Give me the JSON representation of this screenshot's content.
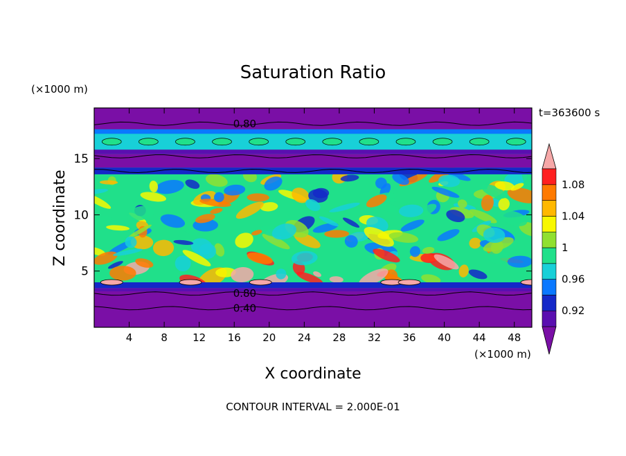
{
  "chart_data": {
    "type": "heatmap",
    "title": "Saturation Ratio",
    "xlabel": "X coordinate",
    "ylabel": "Z coordinate",
    "x_unit": "(×1000 m)",
    "y_unit": "(×1000 m)",
    "time_label": "t=363600 s",
    "footer": "CONTOUR INTERVAL = 2.000E-01",
    "xlim": [
      0,
      50
    ],
    "ylim": [
      0,
      19.5
    ],
    "x_ticks": [
      4,
      8,
      12,
      16,
      20,
      24,
      28,
      32,
      36,
      40,
      44,
      48
    ],
    "y_ticks": [
      5,
      10,
      15
    ],
    "colorbar": {
      "levels": [
        0.92,
        0.94,
        0.96,
        0.98,
        1.0,
        1.02,
        1.04,
        1.06,
        1.08
      ],
      "labels": [
        "0.92",
        "0.96",
        "1",
        "1.04",
        "1.08"
      ],
      "colors": [
        "#7a0fa6",
        "#5a0fb0",
        "#1428c8",
        "#0a78ff",
        "#18d0d8",
        "#20e08a",
        "#90e030",
        "#f8f800",
        "#ffb800",
        "#ff7a00",
        "#ff2020",
        "#f6a8a8"
      ]
    },
    "bands": [
      {
        "z0": 0,
        "z1": 3.2,
        "color": "#7a0fa6"
      },
      {
        "z0": 3.2,
        "z1": 3.5,
        "color": "#5a0fb0"
      },
      {
        "z0": 3.5,
        "z1": 4.0,
        "color": "#1428c8"
      },
      {
        "z0": 13.6,
        "z1": 14.2,
        "color": "#1428c8"
      },
      {
        "z0": 14.2,
        "z1": 15.4,
        "color": "#7a0fa6"
      },
      {
        "z0": 15.4,
        "z1": 15.8,
        "color": "#5a0fb0"
      },
      {
        "z0": 15.8,
        "z1": 17.2,
        "color": "#18d0d8"
      },
      {
        "z0": 17.2,
        "z1": 17.6,
        "color": "#0a78ff"
      },
      {
        "z0": 17.6,
        "z1": 19.5,
        "color": "#7a0fa6"
      }
    ],
    "contour_labels": [
      {
        "text": "0.80",
        "x": 17.2,
        "z": 18.1
      },
      {
        "text": "0.80",
        "x": 17.2,
        "z": 3.0
      },
      {
        "text": "0.40",
        "x": 17.2,
        "z": 1.7
      }
    ]
  }
}
